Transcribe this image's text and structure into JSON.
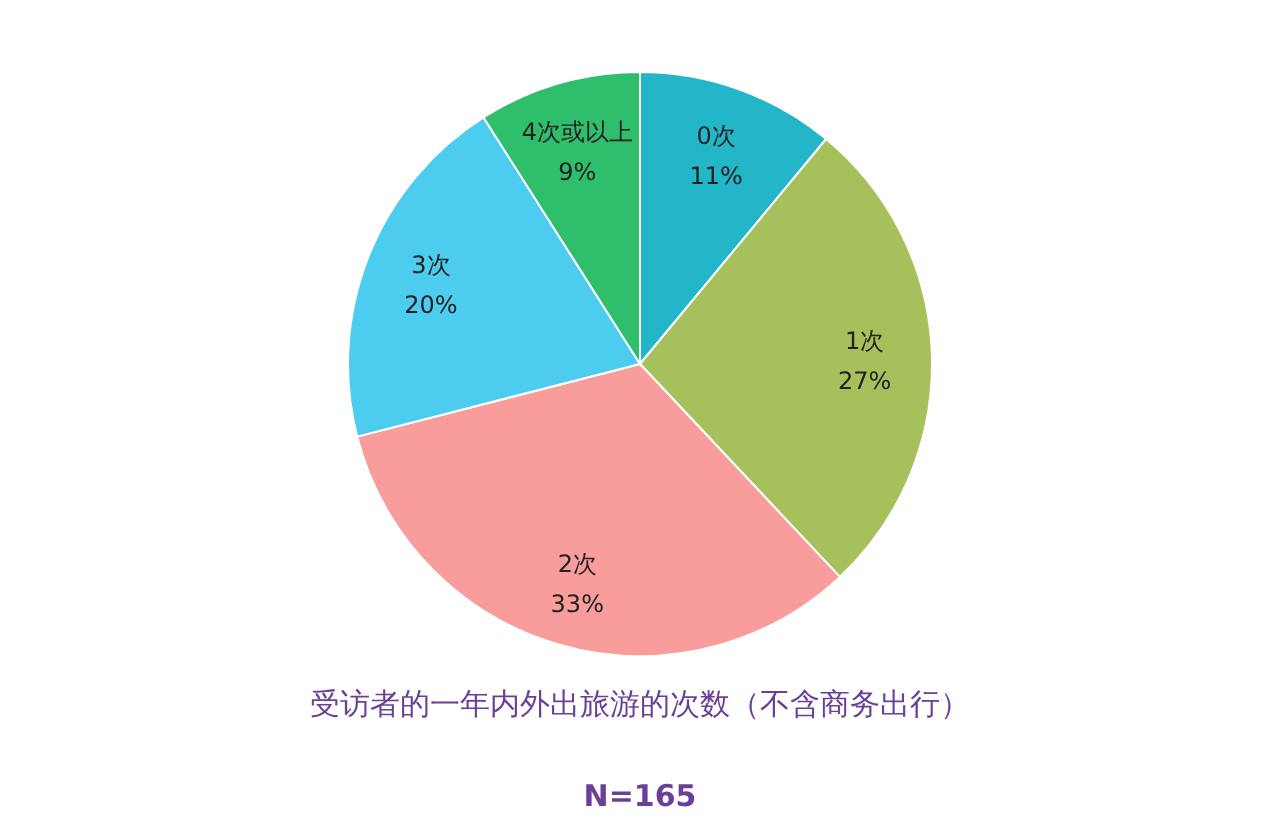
{
  "chart_data": {
    "type": "pie",
    "title": "受访者的一年内外出旅游的次数（不含商务出行）",
    "annotations": [
      "N=165"
    ],
    "categories": [
      "0次",
      "1次",
      "2次",
      "3次",
      "4次或以上"
    ],
    "values": [
      11,
      27,
      33,
      20,
      9
    ],
    "colors": [
      "#23b5c8",
      "#a6c05c",
      "#f89c9c",
      "#4ccdf0",
      "#2fbf6c"
    ],
    "value_labels": [
      "11%",
      "27%",
      "33%",
      "20%",
      "9%"
    ]
  }
}
